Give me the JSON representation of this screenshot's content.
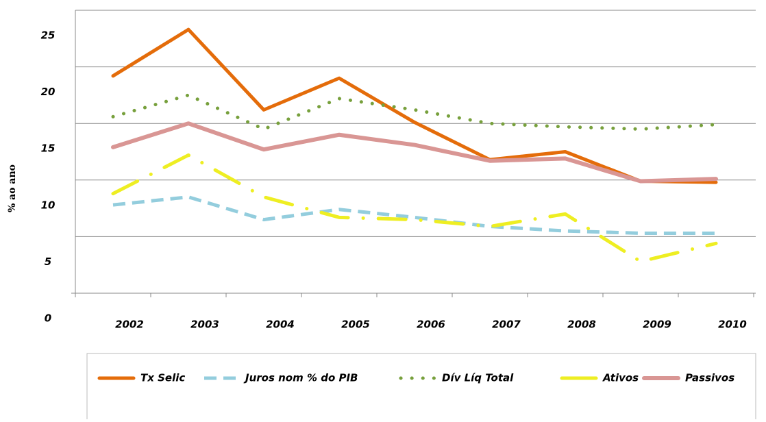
{
  "chart_data": {
    "type": "line",
    "y_label": "% ao ano",
    "categories": [
      "2002",
      "2003",
      "2004",
      "2005",
      "2006",
      "2007",
      "2008",
      "2009",
      "2010"
    ],
    "series": [
      {
        "name": "Tx Selic",
        "color": "#e46c0a",
        "values": [
          19.2,
          23.3,
          16.2,
          19.0,
          15.1,
          11.8,
          12.5,
          9.9,
          9.8
        ]
      },
      {
        "name": "Juros nom % do PIB",
        "color": "#93cddd",
        "values": [
          7.8,
          8.5,
          6.5,
          7.4,
          6.7,
          5.9,
          5.5,
          5.3,
          5.3
        ]
      },
      {
        "name": "Dív Líq Total",
        "color": "#77a03c",
        "values": [
          15.6,
          17.5,
          14.5,
          17.2,
          16.2,
          15.0,
          14.7,
          14.5,
          14.9
        ]
      },
      {
        "name": "Ativos",
        "color": "#eeee22",
        "values": [
          8.8,
          12.2,
          8.5,
          6.7,
          6.5,
          5.9,
          7.0,
          2.8,
          4.4
        ]
      },
      {
        "name": "Passivos",
        "color": "#d99694",
        "values": [
          12.9,
          15.0,
          12.7,
          14.0,
          13.1,
          11.7,
          11.9,
          9.9,
          10.1
        ]
      }
    ],
    "ylim": [
      0,
      25
    ],
    "yticks": [
      0,
      5,
      10,
      15,
      20,
      25
    ],
    "grid": true
  }
}
